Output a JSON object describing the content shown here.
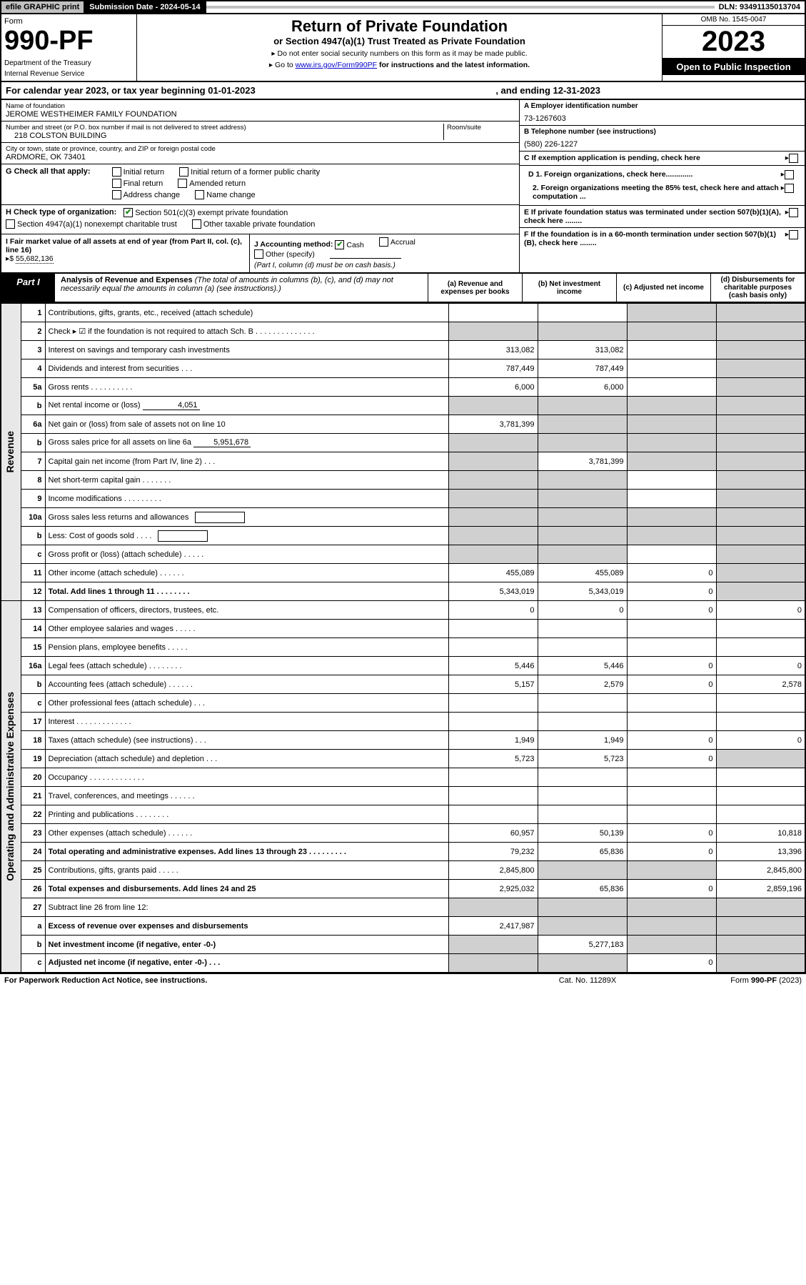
{
  "top": {
    "efile": "efile GRAPHIC print",
    "sub_label": "Submission Date - 2024-05-14",
    "dln": "DLN: 93491135013704"
  },
  "header": {
    "form_word": "Form",
    "form_num": "990-PF",
    "dept1": "Department of the Treasury",
    "dept2": "Internal Revenue Service",
    "title": "Return of Private Foundation",
    "subtitle": "or Section 4947(a)(1) Trust Treated as Private Foundation",
    "instr1": "▸ Do not enter social security numbers on this form as it may be made public.",
    "instr2a": "▸ Go to ",
    "link": "www.irs.gov/Form990PF",
    "instr2b": " for instructions and the latest information.",
    "omb": "OMB No. 1545-0047",
    "year": "2023",
    "open": "Open to Public Inspection"
  },
  "cal": {
    "text": "For calendar year 2023, or tax year beginning 01-01-2023",
    "end": ", and ending 12-31-2023"
  },
  "info": {
    "name_lbl": "Name of foundation",
    "name": "JEROME WESTHEIMER FAMILY FOUNDATION",
    "addr_lbl": "Number and street (or P.O. box number if mail is not delivered to street address)",
    "addr": "218 COLSTON BUILDING",
    "room_lbl": "Room/suite",
    "city_lbl": "City or town, state or province, country, and ZIP or foreign postal code",
    "city": "ARDMORE, OK  73401",
    "ein_lbl": "A Employer identification number",
    "ein": "73-1267603",
    "tel_lbl": "B Telephone number (see instructions)",
    "tel": "(580) 226-1227",
    "c": "C If exemption application is pending, check here",
    "d1": "D 1. Foreign organizations, check here.............",
    "d2": "2. Foreign organizations meeting the 85% test, check here and attach computation ...",
    "e": "E  If private foundation status was terminated under section 507(b)(1)(A), check here ........",
    "f": "F  If the foundation is in a 60-month termination under section 507(b)(1)(B), check here ........"
  },
  "g": {
    "lbl": "G Check all that apply:",
    "i1": "Initial return",
    "i2": "Initial return of a former public charity",
    "i3": "Final return",
    "i4": "Amended return",
    "i5": "Address change",
    "i6": "Name change"
  },
  "h": {
    "lbl": "H Check type of organization:",
    "o1": "Section 501(c)(3) exempt private foundation",
    "o2": "Section 4947(a)(1) nonexempt charitable trust",
    "o3": "Other taxable private foundation"
  },
  "ij": {
    "i_lbl": "I Fair market value of all assets at end of year (from Part II, col. (c), line 16)",
    "i_prefix": "▸$ ",
    "i_val": "55,682,136",
    "j_lbl": "J Accounting method:",
    "j_cash": "Cash",
    "j_accr": "Accrual",
    "j_other": "Other (specify)",
    "j_note": "(Part I, column (d) must be on cash basis.)"
  },
  "part1": {
    "tag": "Part I",
    "title": "Analysis of Revenue and Expenses",
    "note": " (The total of amounts in columns (b), (c), and (d) may not necessarily equal the amounts in column (a) (see instructions).)",
    "col_a": "(a)   Revenue and expenses per books",
    "col_b": "(b)   Net investment income",
    "col_c": "(c)  Adjusted net income",
    "col_d": "(d)  Disbursements for charitable purposes (cash basis only)"
  },
  "vlabels": {
    "rev": "Revenue",
    "exp": "Operating and Administrative Expenses"
  },
  "rows": [
    {
      "n": "1",
      "l": "Contributions, gifts, grants, etc., received (attach schedule)",
      "a": "",
      "b": "",
      "c": "g",
      "d": "g"
    },
    {
      "n": "2",
      "l": "Check ▸ ☑ if the foundation is not required to attach Sch. B   .   .   .   .   .   .   .   .   .   .   .   .   .   .",
      "a": "g",
      "b": "g",
      "c": "g",
      "d": "g",
      "chk": true
    },
    {
      "n": "3",
      "l": "Interest on savings and temporary cash investments",
      "a": "313,082",
      "b": "313,082",
      "c": "",
      "d": "g"
    },
    {
      "n": "4",
      "l": "Dividends and interest from securities   .   .   .",
      "a": "787,449",
      "b": "787,449",
      "c": "",
      "d": "g"
    },
    {
      "n": "5a",
      "l": "Gross rents   .   .   .   .   .   .   .   .   .   .",
      "a": "6,000",
      "b": "6,000",
      "c": "",
      "d": "g"
    },
    {
      "n": "b",
      "l": "Net rental income or (loss)",
      "a": "g",
      "b": "g",
      "c": "g",
      "d": "g",
      "inline": "4,051"
    },
    {
      "n": "6a",
      "l": "Net gain or (loss) from sale of assets not on line 10",
      "a": "3,781,399",
      "b": "g",
      "c": "g",
      "d": "g"
    },
    {
      "n": "b",
      "l": "Gross sales price for all assets on line 6a",
      "a": "g",
      "b": "g",
      "c": "g",
      "d": "g",
      "inline": "5,951,678"
    },
    {
      "n": "7",
      "l": "Capital gain net income (from Part IV, line 2)   .   .   .",
      "a": "g",
      "b": "3,781,399",
      "c": "g",
      "d": "g"
    },
    {
      "n": "8",
      "l": "Net short-term capital gain   .   .   .   .   .   .   .",
      "a": "g",
      "b": "g",
      "c": "",
      "d": "g"
    },
    {
      "n": "9",
      "l": "Income modifications .   .   .   .   .   .   .   .   .",
      "a": "g",
      "b": "g",
      "c": "",
      "d": "g"
    },
    {
      "n": "10a",
      "l": "Gross sales less returns and allowances",
      "a": "g",
      "b": "g",
      "c": "g",
      "d": "g",
      "box": true
    },
    {
      "n": "b",
      "l": "Less: Cost of goods sold   .   .   .   .",
      "a": "g",
      "b": "g",
      "c": "g",
      "d": "g",
      "box": true
    },
    {
      "n": "c",
      "l": "Gross profit or (loss) (attach schedule)   .   .   .   .   .",
      "a": "g",
      "b": "g",
      "c": "",
      "d": "g"
    },
    {
      "n": "11",
      "l": "Other income (attach schedule)   .   .   .   .   .   .",
      "a": "455,089",
      "b": "455,089",
      "c": "0",
      "d": "g"
    },
    {
      "n": "12",
      "l": "Total. Add lines 1 through 11   .   .   .   .   .   .   .   .",
      "a": "5,343,019",
      "b": "5,343,019",
      "c": "0",
      "d": "g",
      "bold": true
    },
    {
      "n": "13",
      "l": "Compensation of officers, directors, trustees, etc.",
      "a": "0",
      "b": "0",
      "c": "0",
      "d": "0"
    },
    {
      "n": "14",
      "l": "Other employee salaries and wages   .   .   .   .   .",
      "a": "",
      "b": "",
      "c": "",
      "d": ""
    },
    {
      "n": "15",
      "l": "Pension plans, employee benefits   .   .   .   .   .",
      "a": "",
      "b": "",
      "c": "",
      "d": ""
    },
    {
      "n": "16a",
      "l": "Legal fees (attach schedule) .   .   .   .   .   .   .   .",
      "a": "5,446",
      "b": "5,446",
      "c": "0",
      "d": "0"
    },
    {
      "n": "b",
      "l": "Accounting fees (attach schedule)   .   .   .   .   .   .",
      "a": "5,157",
      "b": "2,579",
      "c": "0",
      "d": "2,578"
    },
    {
      "n": "c",
      "l": "Other professional fees (attach schedule)   .   .   .",
      "a": "",
      "b": "",
      "c": "",
      "d": ""
    },
    {
      "n": "17",
      "l": "Interest .   .   .   .   .   .   .   .   .   .   .   .   .",
      "a": "",
      "b": "",
      "c": "",
      "d": ""
    },
    {
      "n": "18",
      "l": "Taxes (attach schedule) (see instructions)   .   .   .",
      "a": "1,949",
      "b": "1,949",
      "c": "0",
      "d": "0"
    },
    {
      "n": "19",
      "l": "Depreciation (attach schedule) and depletion   .   .   .",
      "a": "5,723",
      "b": "5,723",
      "c": "0",
      "d": "g"
    },
    {
      "n": "20",
      "l": "Occupancy .   .   .   .   .   .   .   .   .   .   .   .   .",
      "a": "",
      "b": "",
      "c": "",
      "d": ""
    },
    {
      "n": "21",
      "l": "Travel, conferences, and meetings  .   .   .   .   .   .",
      "a": "",
      "b": "",
      "c": "",
      "d": ""
    },
    {
      "n": "22",
      "l": "Printing and publications  .   .   .   .   .   .   .   .",
      "a": "",
      "b": "",
      "c": "",
      "d": ""
    },
    {
      "n": "23",
      "l": "Other expenses (attach schedule)   .   .   .   .   .   .",
      "a": "60,957",
      "b": "50,139",
      "c": "0",
      "d": "10,818"
    },
    {
      "n": "24",
      "l": "Total operating and administrative expenses. Add lines 13 through 23  .   .   .   .   .   .   .   .   .",
      "a": "79,232",
      "b": "65,836",
      "c": "0",
      "d": "13,396",
      "bold": true
    },
    {
      "n": "25",
      "l": "Contributions, gifts, grants paid   .   .   .   .   .",
      "a": "2,845,800",
      "b": "g",
      "c": "g",
      "d": "2,845,800"
    },
    {
      "n": "26",
      "l": "Total expenses and disbursements. Add lines 24 and 25",
      "a": "2,925,032",
      "b": "65,836",
      "c": "0",
      "d": "2,859,196",
      "bold": true
    },
    {
      "n": "27",
      "l": "Subtract line 26 from line 12:",
      "a": "g",
      "b": "g",
      "c": "g",
      "d": "g"
    },
    {
      "n": "a",
      "l": "Excess of revenue over expenses and disbursements",
      "a": "2,417,987",
      "b": "g",
      "c": "g",
      "d": "g",
      "bold": true
    },
    {
      "n": "b",
      "l": "Net investment income (if negative, enter -0-)",
      "a": "g",
      "b": "5,277,183",
      "c": "g",
      "d": "g",
      "bold": true
    },
    {
      "n": "c",
      "l": "Adjusted net income (if negative, enter -0-)   .   .   .",
      "a": "g",
      "b": "g",
      "c": "0",
      "d": "g",
      "bold": true
    }
  ],
  "footer": {
    "l": "For Paperwork Reduction Act Notice, see instructions.",
    "c": "Cat. No. 11289X",
    "r": "Form 990-PF (2023)"
  }
}
